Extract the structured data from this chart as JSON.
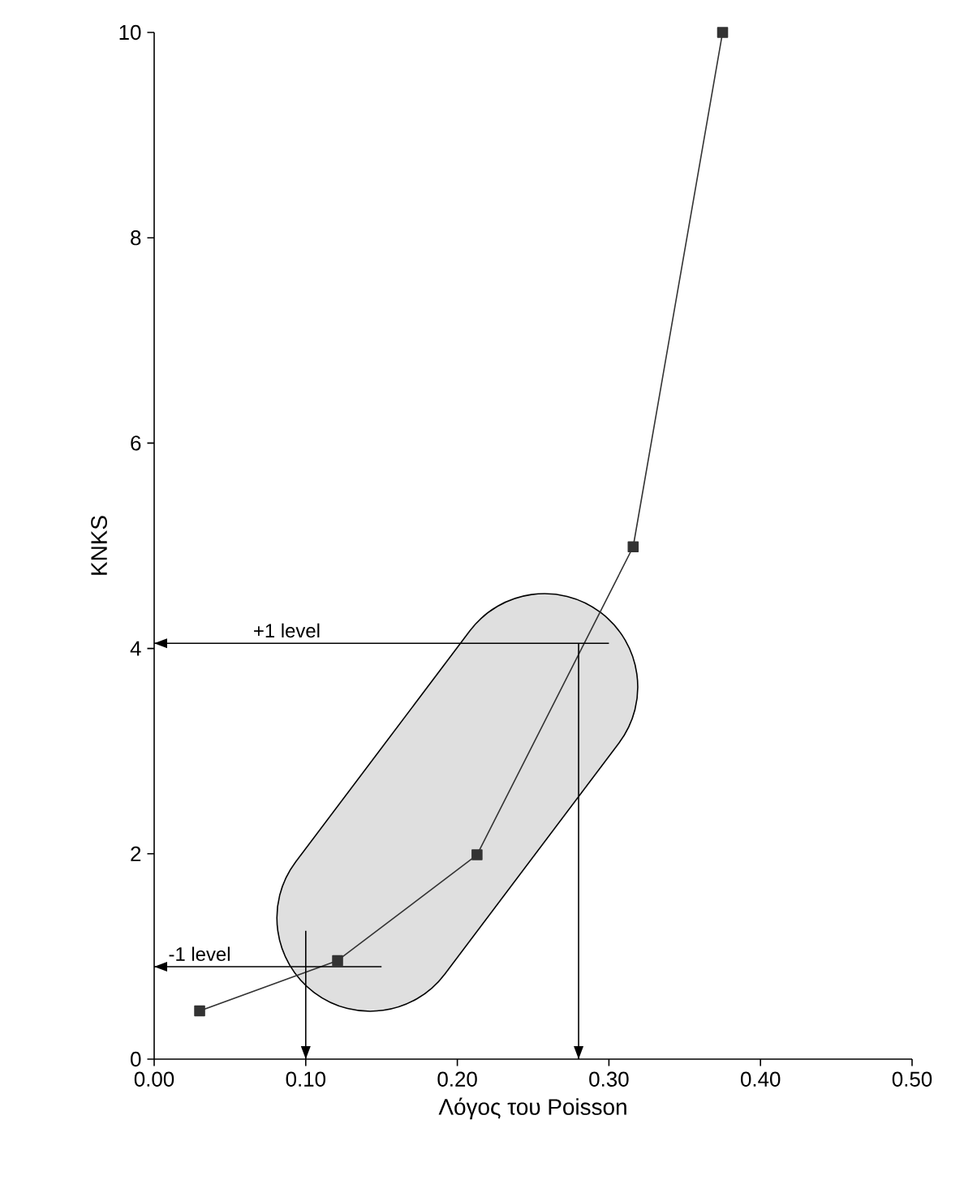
{
  "chart_data": {
    "type": "line",
    "xlabel": "Λόγος του Poisson",
    "ylabel": "KNKS",
    "x": [
      0.03,
      0.121,
      0.213,
      0.316,
      0.375
    ],
    "series": [
      {
        "color": "#333333",
        "values": [
          0.47,
          0.96,
          1.99,
          4.99,
          10.0
        ]
      }
    ],
    "marker": "square",
    "line_style": "solid",
    "grid": false,
    "xlim": [
      0,
      0.5
    ],
    "ylim": [
      0,
      10
    ],
    "xticks": [
      {
        "value": 0,
        "label": "0.00"
      },
      {
        "value": 0.1,
        "label": "0.10"
      },
      {
        "value": 0.2,
        "label": "0.20"
      },
      {
        "value": 0.3,
        "label": "0.30"
      },
      {
        "value": 0.4,
        "label": "0.40"
      },
      {
        "value": 0.5,
        "label": "0.50"
      }
    ],
    "yticks": [
      0,
      2,
      4,
      6,
      8,
      10
    ],
    "ref_lines": [
      {
        "axis": "y",
        "value": 4.05,
        "label": "+1 level"
      },
      {
        "axis": "y",
        "value": 0.9,
        "label": "-1 level"
      },
      {
        "axis": "x",
        "value": 0.1
      },
      {
        "axis": "x",
        "value": 0.28
      }
    ]
  }
}
